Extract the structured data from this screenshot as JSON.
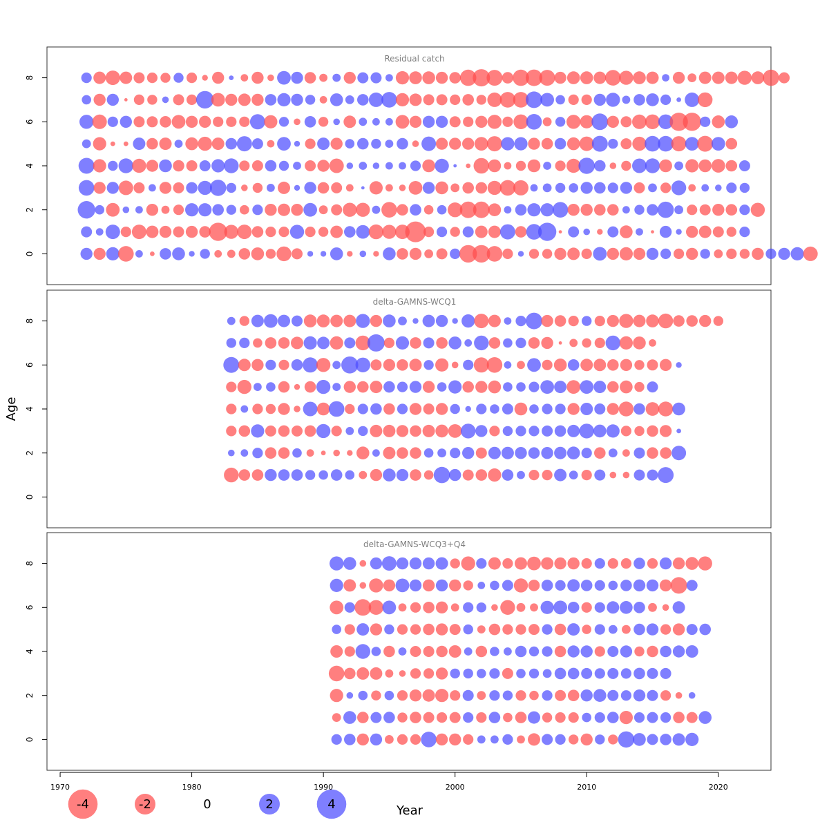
{
  "chart_data": {
    "type": "scatter",
    "subtype": "bubble",
    "xlabel": "Year",
    "ylabel": "Age",
    "x_ticks": [
      1970,
      1980,
      1990,
      2000,
      2010,
      2020
    ],
    "y_ticks": [
      0,
      2,
      4,
      6,
      8
    ],
    "xlim": [
      1969,
      2024
    ],
    "ylim": [
      -1.4,
      9.4
    ],
    "colors": {
      "negative": "#ff4d4d",
      "positive": "#4d4dff"
    },
    "legend": {
      "placement": "bottom-left",
      "entries": [
        {
          "label": "-4",
          "value": -4
        },
        {
          "label": "-2",
          "value": -2
        },
        {
          "label": "0",
          "value": 0
        },
        {
          "label": "2",
          "value": 2
        },
        {
          "label": "4",
          "value": 4
        }
      ]
    },
    "panels": [
      {
        "title": "Residual catch",
        "year_start": 1972,
        "ages": [
          0,
          1,
          2,
          3,
          4,
          5,
          6,
          7,
          8
        ],
        "residuals": [
          [
            1.3,
            -1.3,
            1.6,
            -2.2,
            0.5,
            -0.2,
            1.2,
            1.5,
            0.3,
            0.9,
            -0.5,
            -0.6,
            -1.2,
            -1.5,
            -0.9,
            -2.0,
            -1.1,
            0.3,
            0.3,
            1.5,
            -0.3,
            0.4,
            -0.3,
            1.5,
            -1.2,
            -1.3,
            -0.7,
            -1.1,
            1.0,
            -2.8,
            -2.8,
            -2.2,
            -1.0,
            0.3,
            -0.9,
            -0.9,
            -1.3,
            -1.4,
            -1.0,
            1.7,
            -1.3,
            -1.6,
            -1.3,
            1.3,
            1.0,
            -1.0,
            -1.3,
            0.9,
            -0.7,
            -1.0,
            -0.9,
            -1.3,
            1.0,
            1.3,
            1.6,
            -1.9
          ],
          [
            1.1,
            0.5,
            1.9,
            -1.0,
            -1.9,
            -1.4,
            -1.3,
            -1.1,
            -1.3,
            -1.2,
            -3.0,
            -1.8,
            -1.9,
            -1.2,
            -1.0,
            -1.0,
            1.8,
            -1.0,
            -0.9,
            -1.4,
            1.2,
            1.7,
            -2.0,
            -1.8,
            -1.9,
            -3.9,
            -1.0,
            1.0,
            -0.9,
            1.1,
            -1.4,
            -1.4,
            2.1,
            -1.2,
            2.2,
            3.0,
            -0.1,
            1.1,
            0.4,
            -0.3,
            1.1,
            -1.5,
            0.5,
            -0.1,
            1.3,
            0.3,
            -1.3,
            -1.4,
            -1.1,
            -0.9,
            1.0
          ],
          [
            2.8,
            0.8,
            -1.7,
            0.4,
            0.5,
            -1.3,
            -0.6,
            -1.0,
            1.6,
            1.6,
            1.2,
            0.9,
            -0.8,
            1.0,
            -1.3,
            -1.4,
            -1.3,
            1.7,
            -0.7,
            -1.1,
            -1.8,
            -1.8,
            0.6,
            -2.2,
            -1.2,
            1.2,
            -0.8,
            0.8,
            -2.0,
            -2.5,
            -2.5,
            -1.5,
            0.5,
            1.2,
            1.6,
            1.6,
            2.2,
            -1.3,
            -1.3,
            -1.2,
            -1.2,
            0.5,
            0.9,
            1.2,
            2.4,
            0.7,
            -1.0,
            -1.1,
            -1.3,
            -1.2,
            1.0,
            -1.8
          ],
          [
            2.2,
            -1.3,
            1.3,
            -1.9,
            -1.1,
            0.5,
            -1.3,
            -1.1,
            1.2,
            1.8,
            2.4,
            0.9,
            -0.4,
            -0.9,
            0.6,
            -1.4,
            0.3,
            1.3,
            -1.2,
            -1.1,
            -0.5,
            0.1,
            -1.6,
            -0.5,
            -0.4,
            -1.7,
            1.3,
            -1.5,
            -0.7,
            -1.2,
            -1.2,
            -1.8,
            -2.2,
            -2.1,
            0.5,
            0.7,
            0.9,
            0.8,
            1.3,
            1.2,
            1.0,
            1.3,
            -1.1,
            0.7,
            -1.0,
            2.0,
            -0.5,
            0.5,
            0.4,
            1.0,
            0.9
          ],
          [
            2.3,
            -1.6,
            0.9,
            2.0,
            -1.8,
            -1.3,
            1.5,
            -1.2,
            -1.1,
            1.1,
            1.6,
            2.0,
            -1.0,
            -1.1,
            1.2,
            0.9,
            0.6,
            -1.1,
            -1.3,
            -1.9,
            0.4,
            0.6,
            0.4,
            0.5,
            0.5,
            1.0,
            -1.5,
            1.8,
            0.1,
            -0.2,
            -2.2,
            -1.5,
            -0.5,
            -0.9,
            -1.5,
            0.6,
            -1.0,
            -1.8,
            2.4,
            1.2,
            -0.4,
            -0.9,
            1.9,
            2.0,
            -1.5,
            0.7,
            -1.6,
            -1.5,
            -1.7,
            -1.2,
            1.1
          ],
          [
            0.7,
            -1.6,
            -0.2,
            -0.2,
            1.4,
            -1.2,
            -1.4,
            0.6,
            -1.5,
            -1.8,
            -1.4,
            1.2,
            2.1,
            1.1,
            -0.5,
            1.7,
            0.3,
            -1.0,
            1.4,
            -1.3,
            0.8,
            1.2,
            0.9,
            0.6,
            1.2,
            -0.4,
            1.9,
            -1.3,
            -1.3,
            -1.3,
            -1.7,
            -2.1,
            1.6,
            1.6,
            -1.3,
            -1.2,
            1.2,
            -1.5,
            -1.9,
            2.3,
            0.9,
            -1.1,
            -1.8,
            2.2,
            2.2,
            -2.1,
            1.7,
            -2.3,
            1.7,
            -1.2
          ],
          [
            1.8,
            -1.9,
            1.0,
            1.3,
            -1.1,
            -1.1,
            -1.2,
            -1.7,
            -1.3,
            -1.3,
            -1.0,
            -1.0,
            -1.0,
            2.1,
            -1.6,
            0.9,
            -0.4,
            1.2,
            -0.9,
            0.4,
            -1.4,
            0.6,
            0.5,
            0.5,
            -1.7,
            -1.3,
            1.3,
            1.3,
            -1.1,
            -1.0,
            -1.3,
            -1.8,
            -1.0,
            -2.0,
            2.2,
            -0.7,
            0.9,
            -1.8,
            -1.6,
            2.5,
            -1.3,
            -1.1,
            -1.9,
            -2.0,
            2.0,
            -3.0,
            -3.0,
            1.0,
            -1.5,
            1.5
          ],
          [
            0.8,
            -1.3,
            1.3,
            -0.1,
            -1.0,
            -0.9,
            0.4,
            -1.1,
            -1.0,
            2.8,
            -1.7,
            -1.3,
            -1.4,
            -1.3,
            1.2,
            1.6,
            1.3,
            0.9,
            -0.5,
            1.5,
            0.7,
            1.2,
            1.9,
            2.2,
            -1.6,
            -1.4,
            -1.1,
            -1.1,
            -1.0,
            -1.2,
            -0.9,
            -1.9,
            -2.2,
            -2.2,
            2.5,
            1.7,
            0.8,
            -1.0,
            -1.0,
            1.3,
            1.8,
            0.6,
            1.2,
            1.5,
            1.0,
            0.2,
            1.9,
            -2.0
          ],
          [
            1.0,
            -1.4,
            -1.9,
            -1.4,
            -1.1,
            -1.0,
            -0.9,
            0.9,
            -1.0,
            -0.3,
            -1.3,
            0.2,
            -0.5,
            -1.3,
            -0.4,
            1.7,
            1.3,
            -1.2,
            -0.6,
            0.6,
            -1.3,
            1.1,
            1.1,
            0.5,
            -1.6,
            -1.5,
            -1.5,
            -1.3,
            -1.2,
            -2.4,
            -2.7,
            -2.3,
            -1.2,
            -2.4,
            -2.5,
            -2.3,
            -1.3,
            -1.5,
            -1.5,
            -1.4,
            -2.2,
            -1.8,
            -1.5,
            -1.4,
            0.5,
            -1.3,
            -0.7,
            -1.4,
            -1.4,
            -1.4,
            -1.8,
            -1.5,
            -2.4,
            -1.1
          ]
        ]
      },
      {
        "title": "delta-GAMNS-WCQ1",
        "year_start": 1983,
        "ages": [
          1,
          2,
          3,
          4,
          5,
          6,
          7,
          8
        ],
        "residuals": [
          [
            -2.0,
            -1.2,
            -1.2,
            1.3,
            1.2,
            1.2,
            0.9,
            0.8,
            1.2,
            0.8,
            -0.6,
            -1.3,
            1.5,
            1.3,
            -1.2,
            -0.8,
            2.4,
            1.3,
            -1.1,
            -1.2,
            -1.6,
            1.2,
            0.6,
            -1.0,
            -1.0,
            1.4,
            0.7,
            -1.0,
            1.1,
            -0.4,
            -0.4,
            1.1,
            1.1,
            2.3
          ],
          [
            0.4,
            0.5,
            1.0,
            -1.2,
            -1.2,
            0.8,
            -0.5,
            -0.2,
            -0.4,
            -0.3,
            -1.5,
            0.5,
            -1.4,
            -1.2,
            -1.2,
            0.8,
            0.7,
            1.0,
            1.3,
            -1.1,
            1.4,
            1.4,
            1.3,
            1.2,
            1.3,
            1.4,
            1.5,
            1.0,
            -1.2,
            0.7,
            -0.5,
            1.1,
            -1.2,
            -1.2,
            1.9
          ],
          [
            -1.0,
            -1.2,
            1.6,
            -1.1,
            -1.2,
            -1.1,
            -1.2,
            1.8,
            -1.0,
            0.6,
            0.9,
            -1.4,
            -1.4,
            -1.3,
            -1.2,
            -1.4,
            -1.5,
            -1.7,
            2.0,
            1.3,
            -1.0,
            0.9,
            1.0,
            1.0,
            1.1,
            1.2,
            1.4,
            2.0,
            1.5,
            1.6,
            -1.0,
            -0.9,
            -1.2,
            -1.3,
            0.2
          ],
          [
            -1.0,
            0.5,
            -1.0,
            -0.9,
            -1.3,
            -0.4,
            1.9,
            -1.5,
            2.2,
            -0.9,
            1.0,
            1.2,
            -1.2,
            1.0,
            -1.3,
            -1.1,
            -1.3,
            0.9,
            0.3,
            1.0,
            0.8,
            1.1,
            -1.5,
            0.8,
            1.0,
            1.0,
            -1.3,
            1.4,
            1.1,
            -1.3,
            -2.0,
            1.2,
            -1.7,
            -2.0,
            1.5
          ],
          [
            -1.0,
            -1.8,
            0.6,
            0.8,
            -1.2,
            -0.3,
            -1.2,
            1.8,
            0.6,
            -1.3,
            -1.2,
            -1.4,
            1.2,
            1.0,
            1.3,
            -1.3,
            0.8,
            1.6,
            -1.2,
            -1.3,
            -1.5,
            0.8,
            0.8,
            1.0,
            1.7,
            1.4,
            -1.7,
            1.7,
            1.4,
            -1.2,
            -1.5,
            -0.9,
            1.1
          ],
          [
            2.3,
            -1.4,
            -1.3,
            1.0,
            -1.0,
            1.2,
            2.1,
            -1.8,
            0.6,
            2.6,
            2.0,
            -1.1,
            -1.3,
            -1.2,
            -1.4,
            0.9,
            -1.6,
            -0.4,
            1.0,
            -2.1,
            -2.2,
            0.5,
            -0.6,
            1.7,
            -1.0,
            -1.5,
            1.2,
            -1.4,
            -1.4,
            -1.2,
            -1.3,
            -0.9,
            -1.1,
            -1.3,
            0.3
          ],
          [
            0.9,
            1.0,
            -0.8,
            -1.2,
            -1.2,
            -1.4,
            1.6,
            1.4,
            -1.6,
            1.1,
            -2.0,
            2.7,
            -1.0,
            1.6,
            -1.2,
            1.1,
            -1.2,
            1.5,
            0.5,
            2.0,
            -1.2,
            0.8,
            1.0,
            -1.2,
            -1.3,
            -0.1,
            -0.6,
            -0.8,
            -1.0,
            2.0,
            -1.6,
            -1.5,
            -0.5
          ],
          [
            0.6,
            -0.9,
            1.4,
            1.7,
            1.4,
            1.1,
            -1.5,
            -1.5,
            -1.4,
            -1.4,
            1.8,
            -1.3,
            1.5,
            0.7,
            0.3,
            1.4,
            1.3,
            0.3,
            1.6,
            -1.9,
            -1.4,
            0.5,
            1.0,
            2.5,
            -1.3,
            -1.2,
            -1.0,
            0.9,
            -1.0,
            -1.3,
            -1.8,
            -1.4,
            -1.5,
            -2.0,
            -1.2,
            -1.2,
            -1.3,
            -0.9
          ]
        ]
      },
      {
        "title": "delta-GAMNS-WCQ3+Q4",
        "year_start": 1991,
        "ages": [
          0,
          1,
          2,
          3,
          4,
          5,
          6,
          7,
          8
        ],
        "residuals": [
          [
            1.0,
            1.2,
            -1.3,
            1.3,
            -0.7,
            -1.0,
            -1.0,
            2.2,
            -1.3,
            -1.3,
            -1.0,
            0.6,
            0.6,
            1.0,
            -0.6,
            -1.4,
            1.1,
            1.0,
            -0.9,
            -1.3,
            0.9,
            -0.9,
            2.4,
            1.5,
            1.1,
            1.2,
            1.4,
            1.6
          ],
          [
            -0.7,
            1.5,
            -1.2,
            1.1,
            1.2,
            -0.9,
            -1.2,
            -1.1,
            -1.0,
            -1.1,
            1.0,
            -1.0,
            1.2,
            -0.8,
            -1.2,
            1.4,
            -0.9,
            -1.0,
            -1.0,
            0.8,
            1.0,
            1.2,
            -1.6,
            1.0,
            1.1,
            1.0,
            -1.2,
            -1.1,
            1.5
          ],
          [
            -1.6,
            0.4,
            0.8,
            -0.9,
            0.8,
            -1.0,
            -1.3,
            -1.4,
            -1.6,
            -1.0,
            1.1,
            -0.7,
            1.0,
            0.9,
            -1.0,
            -0.8,
            1.0,
            -1.1,
            -1.2,
            1.3,
            1.5,
            1.1,
            1.0,
            1.3,
            1.1,
            -1.0,
            -0.4,
            0.4
          ],
          [
            -2.2,
            -1.2,
            -1.4,
            -1.4,
            -0.6,
            -0.4,
            -1.0,
            -1.0,
            -1.3,
            0.9,
            0.9,
            0.8,
            1.0,
            -1.1,
            0.8,
            0.9,
            0.7,
            1.2,
            1.2,
            1.1,
            1.0,
            1.1,
            1.0,
            1.2,
            1.1,
            1.1
          ],
          [
            -1.4,
            -1.0,
            2.0,
            0.8,
            -1.2,
            0.6,
            -1.1,
            -1.1,
            -1.2,
            -1.4,
            0.6,
            -1.2,
            0.8,
            0.6,
            1.2,
            0.9,
            1.0,
            -1.2,
            1.3,
            1.3,
            -1.0,
            1.1,
            1.3,
            -0.9,
            -1.2,
            1.2,
            1.3,
            1.4
          ],
          [
            0.8,
            -1.0,
            1.4,
            -1.3,
            0.9,
            -1.0,
            -1.0,
            -1.2,
            -1.3,
            -1.1,
            0.9,
            -0.6,
            -1.2,
            -1.0,
            -1.0,
            -1.1,
            1.0,
            -1.2,
            1.4,
            -0.8,
            1.0,
            0.7,
            -0.7,
            1.2,
            1.3,
            -1.0,
            -1.3,
            1.1,
            1.2
          ],
          [
            -1.7,
            1.0,
            -2.5,
            -2.0,
            1.7,
            -0.6,
            -1.0,
            -1.2,
            -1.3,
            -0.6,
            1.0,
            0.9,
            -0.4,
            -2.0,
            -0.7,
            -0.6,
            1.6,
            1.7,
            1.2,
            -1.0,
            1.0,
            1.4,
            1.5,
            1.2,
            -0.7,
            -0.4,
            1.4
          ],
          [
            1.6,
            -1.4,
            -0.4,
            -1.8,
            -1.3,
            1.7,
            1.3,
            -1.3,
            1.3,
            -1.3,
            -0.9,
            0.5,
            0.8,
            1.1,
            -1.8,
            -1.2,
            1.2,
            1.0,
            1.4,
            1.2,
            1.0,
            0.8,
            1.2,
            1.3,
            1.3,
            -1.3,
            -2.5,
            1.1
          ],
          [
            1.8,
            1.5,
            -0.4,
            1.3,
            1.9,
            1.3,
            1.3,
            1.3,
            1.4,
            -0.9,
            -1.8,
            1.0,
            -1.4,
            -1.0,
            -1.4,
            -1.7,
            -1.4,
            -1.3,
            -1.3,
            -1.0,
            1.0,
            -1.0,
            -1.0,
            1.2,
            -1.0,
            1.3,
            -1.3,
            -1.5,
            -1.8
          ]
        ]
      }
    ]
  }
}
